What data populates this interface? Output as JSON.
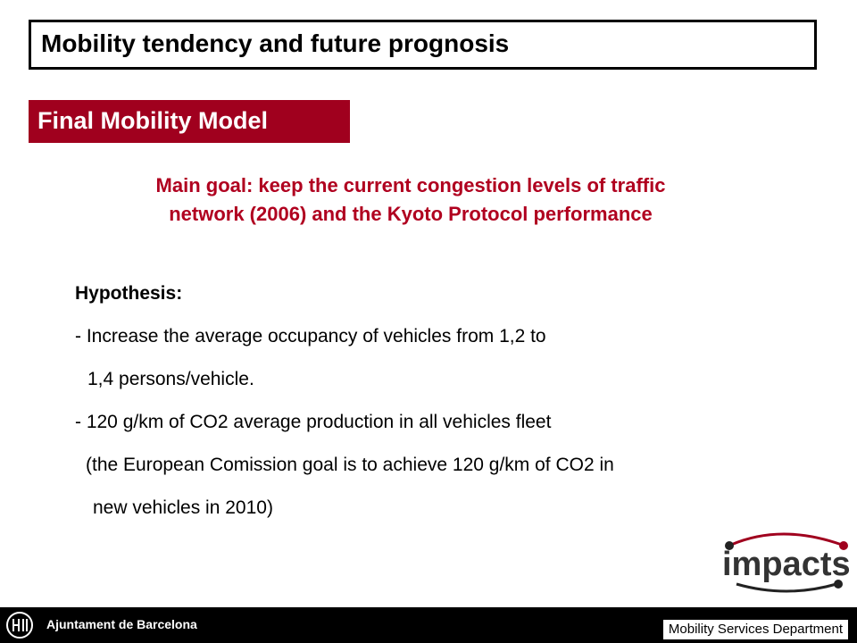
{
  "title": "Mobility tendency and future prognosis",
  "section": "Final Mobility Model",
  "goal": {
    "line1": "Main goal: keep the current congestion levels of traffic",
    "line2": "network (2006) and the Kyoto Protocol performance"
  },
  "hypothesis": {
    "heading": "Hypothesis:",
    "lines": [
      "- Increase the average occupancy of vehicles from 1,2 to",
      "  1,4 persons/vehicle.",
      "- 120 g/km of CO2 average production in all vehicles fleet",
      "  (the European Comission goal is to achieve 120 g/km of CO2 in",
      "   new vehicles in 2010)"
    ]
  },
  "logo": {
    "text": "impacts"
  },
  "footer": {
    "organization": "Ajuntament de Barcelona",
    "department": "Mobility Services Department"
  },
  "colors": {
    "accent": "#a0001e",
    "goal_text": "#b0001f",
    "footer_bg": "#000000"
  }
}
